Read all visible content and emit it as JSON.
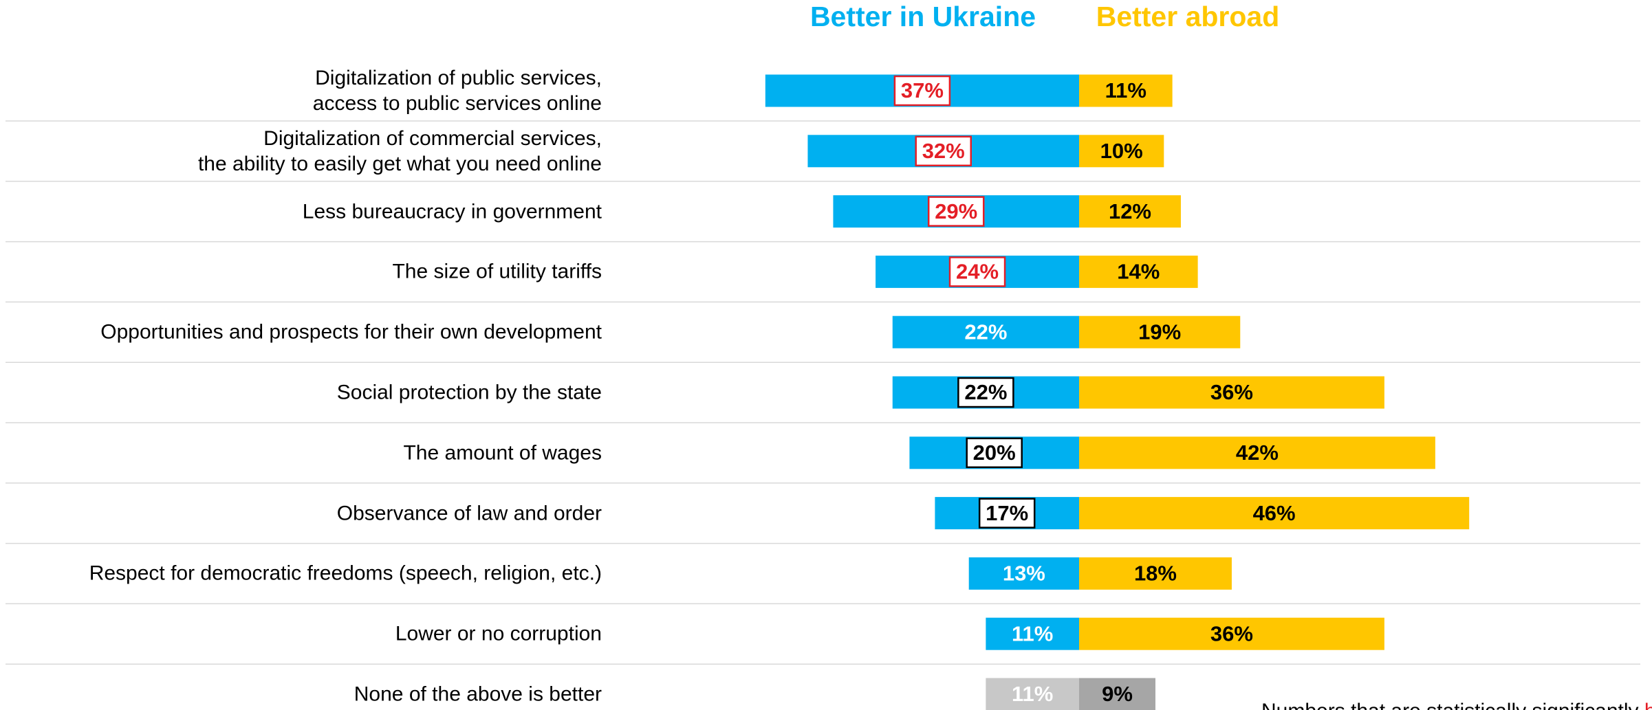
{
  "chart_data": {
    "type": "diverging_bar",
    "categories": [
      "Digitalization of public services,\naccess to public services online",
      "Digitalization of commercial services,\nthe ability to easily get what you need online",
      "Less bureaucracy in government",
      "The size of utility tariffs",
      "Opportunities and prospects for their own development",
      "Social protection by the state",
      "The amount of wages",
      "Observance of law and order",
      "Respect for democratic freedoms (speech, religion, etc.)",
      "Lower or no corruption",
      "None of the above is better"
    ],
    "series": [
      {
        "name": "Better in Ukraine",
        "color": "#00b0f0",
        "direction": "left",
        "values": [
          37,
          32,
          29,
          24,
          22,
          22,
          20,
          17,
          13,
          11,
          11
        ],
        "value_labels": [
          "37%",
          "32%",
          "29%",
          "24%",
          "22%",
          "22%",
          "20%",
          "17%",
          "13%",
          "11%",
          "11%"
        ],
        "point_colors": [
          null,
          null,
          null,
          null,
          null,
          null,
          null,
          null,
          null,
          null,
          "#c8c8c8"
        ],
        "label_box": [
          "#e41e26",
          "#e41e26",
          "#e41e26",
          "#e41e26",
          null,
          "#000000",
          "#000000",
          "#000000",
          null,
          null,
          null
        ]
      },
      {
        "name": "Better abroad",
        "color": "#ffc600",
        "direction": "right",
        "values": [
          11,
          10,
          12,
          14,
          19,
          36,
          42,
          46,
          18,
          36,
          9
        ],
        "value_labels": [
          "11%",
          "10%",
          "12%",
          "14%",
          "19%",
          "36%",
          "42%",
          "46%",
          "18%",
          "36%",
          "9%"
        ],
        "point_colors": [
          null,
          null,
          null,
          null,
          null,
          null,
          null,
          null,
          null,
          null,
          "#a6a6a6"
        ],
        "label_box": [
          null,
          null,
          null,
          null,
          null,
          null,
          null,
          null,
          null,
          null,
          null
        ]
      }
    ],
    "note": "Numbers that are statistically significantly",
    "note_highlight": "higher"
  }
}
